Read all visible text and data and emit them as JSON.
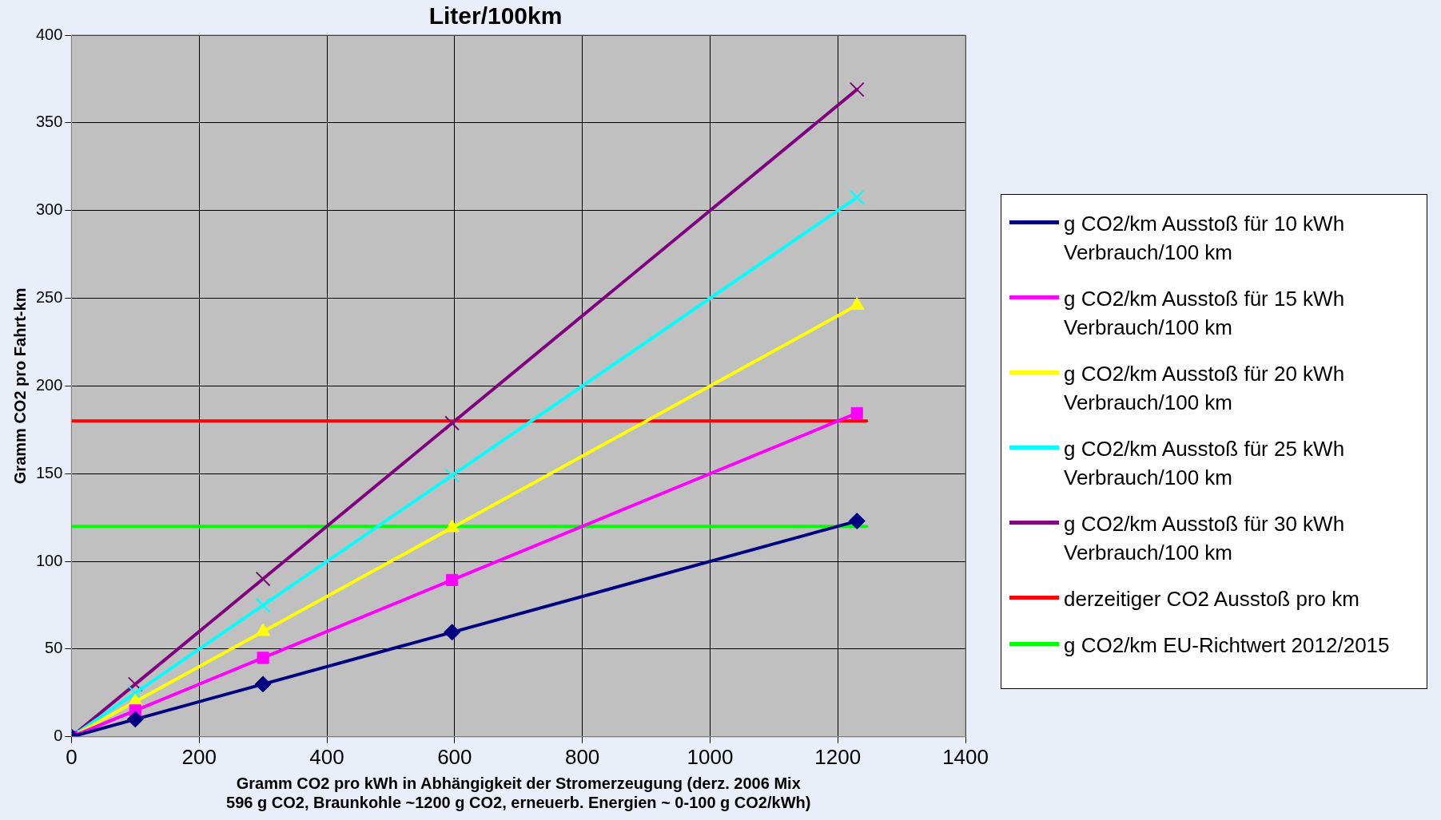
{
  "chart_data": {
    "type": "line",
    "title": "Liter/100km",
    "xlabel": "Gramm CO2 pro kWh in Abhängigkeit der Stromerzeugung (derz. 2006 Mix 596 g CO2, Braunkohle ~1200 g CO2, erneuerb. Energien ~ 0-100 g CO2/kWh)",
    "ylabel": "Gramm CO2 pro Fahrt-km",
    "xlim": [
      0,
      1400
    ],
    "xticks": [
      0,
      200,
      400,
      600,
      800,
      1000,
      1200,
      1400
    ],
    "ylim": [
      0,
      400
    ],
    "yticks": [
      0,
      50,
      100,
      150,
      200,
      250,
      300,
      350,
      400
    ],
    "grid": true,
    "legend": "right",
    "line_style": "solid",
    "series": [
      {
        "name": "g CO2/km Ausstoß für 10 kWh Verbrauch/100 km",
        "color": "#000080",
        "marker": "diamond",
        "x": [
          0,
          100,
          300,
          596,
          1230
        ],
        "values": [
          0,
          10,
          30,
          59.6,
          123
        ]
      },
      {
        "name": "g CO2/km Ausstoß für 15 kWh Verbrauch/100 km",
        "color": "#ff00ff",
        "marker": "square",
        "x": [
          0,
          100,
          300,
          596,
          1230
        ],
        "values": [
          0,
          15,
          45,
          89.4,
          184.5
        ]
      },
      {
        "name": "g CO2/km Ausstoß für 20 kWh Verbrauch/100 km",
        "color": "#ffff00",
        "marker": "triangle",
        "x": [
          0,
          100,
          300,
          596,
          1230
        ],
        "values": [
          0,
          20,
          60,
          119.2,
          246
        ]
      },
      {
        "name": "g CO2/km Ausstoß für 25 kWh Verbrauch/100 km",
        "color": "#00ffff",
        "marker": "cross",
        "x": [
          0,
          100,
          300,
          596,
          1230
        ],
        "values": [
          0,
          25,
          75,
          149,
          307.5
        ]
      },
      {
        "name": "g CO2/km Ausstoß für 30 kWh Verbrauch/100 km",
        "color": "#800080",
        "marker": "cross",
        "x": [
          0,
          100,
          300,
          596,
          1230
        ],
        "values": [
          0,
          30,
          90,
          178.8,
          369
        ]
      },
      {
        "name": "derzeitiger CO2 Ausstoß pro km",
        "color": "#ff0000",
        "marker": "none",
        "x": [
          0,
          1245
        ],
        "values": [
          180,
          180
        ]
      },
      {
        "name": "g CO2/km EU-Richtwert 2012/2015",
        "color": "#00ff00",
        "marker": "none",
        "x": [
          0,
          1245
        ],
        "values": [
          120,
          120
        ]
      }
    ]
  }
}
